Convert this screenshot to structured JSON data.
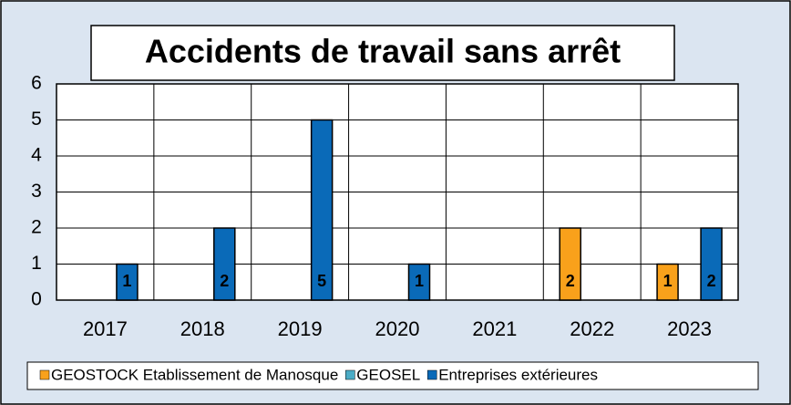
{
  "chart_data": {
    "type": "bar",
    "title": "Accidents de travail sans arrêt",
    "categories": [
      "2017",
      "2018",
      "2019",
      "2020",
      "2021",
      "2022",
      "2023"
    ],
    "series": [
      {
        "name": "GEOSTOCK Etablissement de Manosque",
        "color": "#f9a11b",
        "values": [
          null,
          null,
          null,
          null,
          null,
          2,
          1
        ]
      },
      {
        "name": "GEOSEL",
        "color": "#4bacc6",
        "values": [
          null,
          null,
          null,
          null,
          null,
          null,
          null
        ]
      },
      {
        "name": "Entreprises extérieures",
        "color": "#0a6ab8",
        "values": [
          1,
          2,
          5,
          1,
          null,
          null,
          2
        ]
      }
    ],
    "ylim": [
      0,
      6
    ],
    "yticks": [
      0,
      1,
      2,
      3,
      4,
      5,
      6
    ],
    "grid": true,
    "legend": "bottom"
  }
}
